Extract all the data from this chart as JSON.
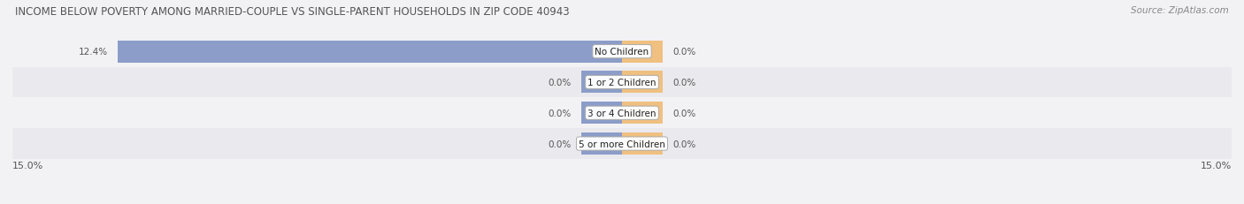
{
  "title": "INCOME BELOW POVERTY AMONG MARRIED-COUPLE VS SINGLE-PARENT HOUSEHOLDS IN ZIP CODE 40943",
  "source": "Source: ZipAtlas.com",
  "categories": [
    "No Children",
    "1 or 2 Children",
    "3 or 4 Children",
    "5 or more Children"
  ],
  "married_values": [
    12.4,
    0.0,
    0.0,
    0.0
  ],
  "single_values": [
    0.0,
    0.0,
    0.0,
    0.0
  ],
  "xlim": 15.0,
  "married_color": "#8b9dc8",
  "single_color": "#f0c080",
  "row_bg_even": "#eaeaee",
  "row_bg_odd": "#f2f2f5",
  "fig_bg": "#f2f2f5",
  "axis_label_left": "15.0%",
  "axis_label_right": "15.0%",
  "stub_size": 1.0,
  "title_color": "#555555",
  "source_color": "#888888",
  "label_color": "#555555"
}
